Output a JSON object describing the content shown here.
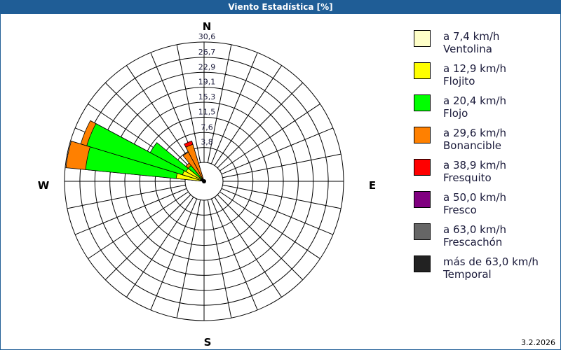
{
  "title": "Viento Estadística [%]",
  "date": "3.2.2026",
  "chart_data": {
    "type": "wind-rose",
    "title": "Viento Estadística [%]",
    "compass": {
      "N": "N",
      "E": "E",
      "S": "S",
      "W": "W"
    },
    "ring_labels": [
      "3,8",
      "7,6",
      "11,5",
      "15,3",
      "19,1",
      "22,9",
      "26,7",
      "30,6"
    ],
    "ring_values": [
      3.8,
      7.6,
      11.5,
      15.3,
      19.1,
      22.9,
      26.7,
      30.6
    ],
    "rmax": 30.6,
    "sectors": 32,
    "categories": [
      {
        "range": "a 7,4 km/h",
        "name": "Ventolina",
        "color": "#ffffc8"
      },
      {
        "range": "a 12,9 km/h",
        "name": "Flojito",
        "color": "#ffff00"
      },
      {
        "range": "a 20,4 km/h",
        "name": "Flojo",
        "color": "#00ff00"
      },
      {
        "range": "a 29,6 km/h",
        "name": "Bonancible",
        "color": "#ff8000"
      },
      {
        "range": "a 38,9 km/h",
        "name": "Fresquito",
        "color": "#ff0000"
      },
      {
        "range": "a 50,0 km/h",
        "name": "Fresco",
        "color": "#800080"
      },
      {
        "range": "a 63,0 km/h",
        "name": "Frescachón",
        "color": "#666666"
      },
      {
        "range": "más de 63,0 km/h",
        "name": "Temporal",
        "color": "#222222"
      }
    ],
    "directions": [
      {
        "deg": 281.25,
        "values": [
          0,
          2.3,
          23.1,
          5.0,
          0,
          0,
          0,
          0
        ]
      },
      {
        "deg": 292.5,
        "values": [
          0,
          0.9,
          25.4,
          1.6,
          0,
          0,
          0,
          0
        ]
      },
      {
        "deg": 303.75,
        "values": [
          0,
          0.4,
          10.3,
          0,
          0,
          0,
          0,
          0
        ]
      },
      {
        "deg": 315,
        "values": [
          0,
          0,
          0.4,
          0.8,
          0,
          0,
          0,
          0
        ]
      },
      {
        "deg": 326.25,
        "values": [
          0,
          0,
          0,
          3.6,
          0,
          0,
          0,
          0
        ]
      },
      {
        "deg": 337.5,
        "values": [
          0,
          0,
          0,
          5.0,
          0.9,
          0,
          0,
          0
        ]
      }
    ]
  }
}
